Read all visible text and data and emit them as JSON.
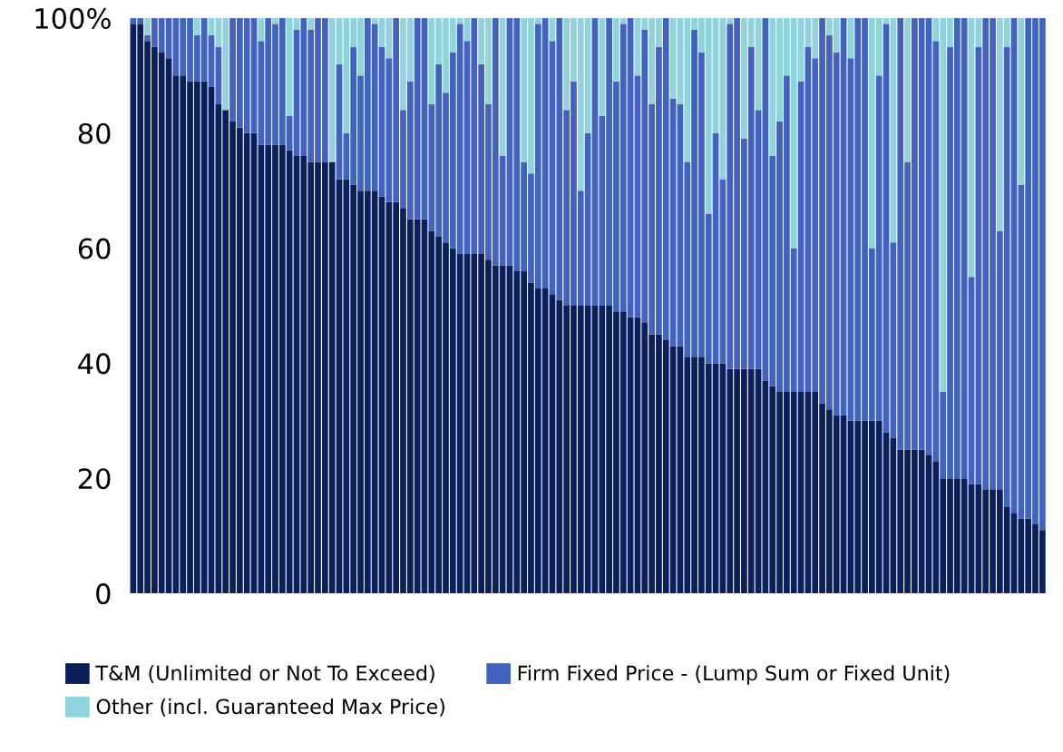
{
  "chart_data": {
    "type": "bar",
    "stacked": true,
    "categories": [
      null,
      null,
      null,
      null,
      null,
      null,
      null,
      null,
      null,
      null,
      null,
      null,
      null,
      null,
      null,
      null,
      null,
      null,
      null,
      null,
      null,
      null,
      null,
      null,
      null,
      null,
      null,
      null,
      null,
      null,
      null,
      null,
      null,
      null,
      null,
      null,
      null,
      null,
      null,
      null,
      null,
      null,
      null,
      null,
      null,
      null,
      null,
      null,
      null,
      null,
      null,
      null,
      null,
      null,
      null,
      null,
      null,
      null,
      null,
      null,
      null,
      null,
      null,
      null,
      null,
      null,
      null,
      null,
      null,
      null,
      null,
      null,
      null,
      null,
      null,
      null,
      null,
      null,
      null,
      null,
      null,
      null,
      null,
      null,
      null,
      null,
      null,
      null,
      null,
      null,
      null,
      null,
      null,
      null,
      null,
      null,
      null,
      null,
      null,
      null,
      null,
      null,
      null,
      null,
      null,
      null,
      null,
      null,
      null,
      null,
      null,
      null,
      null,
      null,
      null,
      null,
      null,
      null,
      null,
      null,
      null,
      null,
      null,
      null,
      null,
      null,
      null,
      null,
      null
    ],
    "series": [
      {
        "name": "T&M (Unlimited or Not To Exceed)",
        "color": "#0a1f5c",
        "values": [
          99,
          99,
          96,
          95,
          94,
          93,
          90,
          90,
          89,
          89,
          89,
          88,
          85,
          84,
          82,
          81,
          80,
          80,
          78,
          78,
          78,
          78,
          77,
          76,
          76,
          75,
          75,
          75,
          75,
          72,
          72,
          71,
          70,
          70,
          70,
          69,
          68,
          68,
          67,
          65,
          65,
          65,
          63,
          62,
          61,
          60,
          59,
          59,
          59,
          59,
          58,
          57,
          57,
          57,
          56,
          56,
          54,
          53,
          53,
          52,
          51,
          50,
          50,
          50,
          50,
          50,
          50,
          50,
          49,
          49,
          48,
          48,
          47,
          45,
          45,
          44,
          43,
          43,
          41,
          41,
          41,
          40,
          40,
          40,
          39,
          39,
          39,
          39,
          39,
          37,
          36,
          35,
          35,
          35,
          35,
          35,
          35,
          33,
          32,
          31,
          31,
          30,
          30,
          30,
          30,
          30,
          28,
          27,
          25,
          25,
          25,
          25,
          24,
          23,
          20,
          20,
          20,
          20,
          19,
          19,
          18,
          18,
          18,
          15,
          14,
          13,
          13,
          12,
          11
        ]
      },
      {
        "name": "Firm Fixed Price - (Lump Sum or Fixed Unit)",
        "color": "#4262c0",
        "values": [
          1,
          1,
          1,
          5,
          6,
          7,
          10,
          10,
          11,
          8,
          11,
          9,
          10,
          0,
          18,
          19,
          20,
          20,
          18,
          22,
          21,
          22,
          6,
          22,
          24,
          23,
          25,
          25,
          0,
          20,
          8,
          24,
          20,
          30,
          29,
          26,
          25,
          32,
          17,
          24,
          35,
          35,
          22,
          30,
          26,
          34,
          40,
          37,
          41,
          33,
          27,
          43,
          19,
          43,
          44,
          19,
          19,
          46,
          47,
          44,
          49,
          34,
          39,
          20,
          30,
          50,
          33,
          50,
          40,
          50,
          52,
          42,
          51,
          40,
          50,
          56,
          43,
          42,
          34,
          57,
          53,
          26,
          40,
          32,
          60,
          61,
          40,
          56,
          45,
          63,
          40,
          47,
          55,
          25,
          54,
          60,
          58,
          67,
          65,
          63,
          69,
          63,
          70,
          70,
          30,
          60,
          71,
          34,
          75,
          50,
          75,
          75,
          76,
          73,
          15,
          75,
          80,
          80,
          36,
          76,
          82,
          82,
          45,
          80,
          86,
          58,
          87,
          88,
          89
        ]
      },
      {
        "name": "Other (incl. Guaranteed Max Price)",
        "color": "#8fd3de",
        "values": [
          0,
          0,
          3,
          0,
          0,
          0,
          0,
          0,
          0,
          3,
          0,
          3,
          5,
          16,
          0,
          0,
          0,
          0,
          4,
          0,
          1,
          0,
          17,
          2,
          0,
          2,
          0,
          0,
          25,
          8,
          20,
          5,
          10,
          0,
          1,
          5,
          7,
          0,
          16,
          11,
          0,
          0,
          15,
          8,
          13,
          6,
          1,
          4,
          0,
          8,
          15,
          0,
          24,
          0,
          0,
          25,
          27,
          1,
          0,
          4,
          0,
          16,
          11,
          30,
          20,
          0,
          17,
          0,
          11,
          1,
          0,
          10,
          2,
          15,
          5,
          0,
          14,
          15,
          25,
          2,
          6,
          34,
          20,
          28,
          1,
          0,
          21,
          5,
          16,
          0,
          24,
          18,
          10,
          40,
          11,
          5,
          7,
          0,
          3,
          6,
          0,
          7,
          0,
          0,
          40,
          10,
          1,
          39,
          0,
          25,
          0,
          0,
          0,
          4,
          65,
          5,
          0,
          0,
          45,
          5,
          0,
          0,
          37,
          5,
          0,
          29,
          0,
          0,
          0
        ]
      }
    ],
    "ylim": [
      0,
      100
    ],
    "yticks": [
      0,
      20,
      40,
      60,
      80,
      {
        "value": 100,
        "label": "100%"
      }
    ],
    "grid": false,
    "legend": "bottom"
  }
}
